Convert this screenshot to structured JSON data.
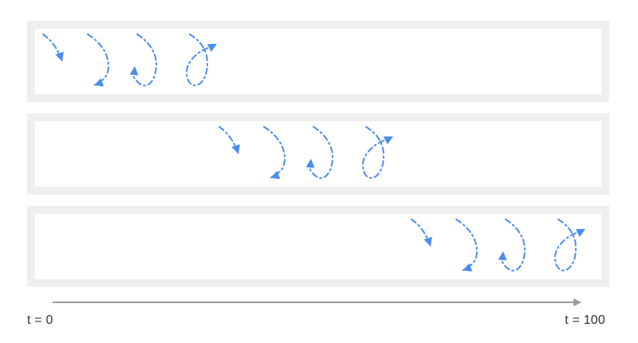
{
  "timeline": {
    "start_label": "t = 0",
    "end_label": "t = 100"
  },
  "colors": {
    "track_border": "#efefef",
    "track_fill": "#ffffff",
    "stroke": "#4a8df0",
    "axis": "#9b9b9b",
    "label_text": "#333333"
  },
  "gesture_frames": [
    "curl-stage-1",
    "curl-stage-2",
    "curl-stage-3",
    "curl-stage-4"
  ],
  "tracks": [
    {
      "name": "track-1"
    },
    {
      "name": "track-2"
    },
    {
      "name": "track-3"
    }
  ]
}
